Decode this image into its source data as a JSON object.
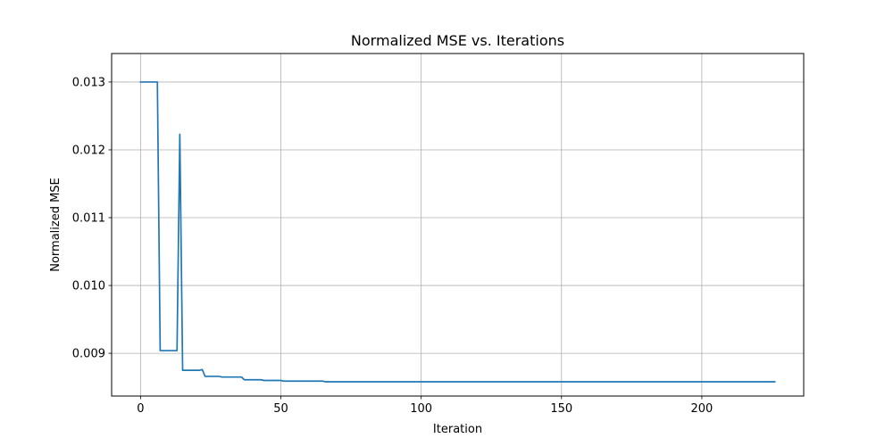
{
  "chart_data": {
    "type": "line",
    "title": "Normalized MSE vs. Iterations",
    "xlabel": "Iteration",
    "ylabel": "Normalized MSE",
    "xlim": [
      -10.3,
      236.3
    ],
    "ylim": [
      0.00837,
      0.01342
    ],
    "xticks": [
      0,
      50,
      100,
      150,
      200
    ],
    "xtick_labels": [
      "0",
      "50",
      "100",
      "150",
      "200"
    ],
    "yticks": [
      0.009,
      0.01,
      0.011,
      0.012,
      0.013
    ],
    "ytick_labels": [
      "0.009",
      "0.010",
      "0.011",
      "0.012",
      "0.013"
    ],
    "grid": true,
    "legend": "none",
    "series": [
      {
        "color": "#1f77b4",
        "x": [
          0,
          1,
          2,
          3,
          4,
          5,
          6,
          7,
          8,
          9,
          10,
          11,
          12,
          13,
          14,
          15,
          16,
          17,
          18,
          19,
          20,
          21,
          22,
          23,
          24,
          25,
          26,
          27,
          28,
          29,
          30,
          31,
          32,
          33,
          34,
          35,
          36,
          37,
          38,
          39,
          40,
          41,
          42,
          43,
          44,
          45,
          46,
          47,
          48,
          49,
          50,
          51,
          52,
          53,
          54,
          55,
          56,
          57,
          58,
          59,
          60,
          61,
          62,
          63,
          64,
          65,
          66,
          67,
          68,
          69,
          70,
          72,
          74,
          76,
          78,
          80,
          85,
          90,
          95,
          100,
          110,
          120,
          130,
          140,
          150,
          160,
          170,
          180,
          190,
          200,
          210,
          220,
          226
        ],
        "y": [
          0.013,
          0.013,
          0.013,
          0.013,
          0.013,
          0.013,
          0.013,
          0.00904,
          0.00904,
          0.00904,
          0.00904,
          0.00904,
          0.00904,
          0.00904,
          0.01223,
          0.00875,
          0.00875,
          0.00875,
          0.00875,
          0.00875,
          0.00875,
          0.00875,
          0.00876,
          0.00866,
          0.00866,
          0.00866,
          0.00866,
          0.00866,
          0.00866,
          0.00865,
          0.00865,
          0.00865,
          0.00865,
          0.00865,
          0.00865,
          0.00865,
          0.00865,
          0.00861,
          0.00861,
          0.00861,
          0.00861,
          0.00861,
          0.00861,
          0.00861,
          0.0086,
          0.0086,
          0.0086,
          0.0086,
          0.0086,
          0.0086,
          0.0086,
          0.00859,
          0.00859,
          0.00859,
          0.00859,
          0.00859,
          0.00859,
          0.00859,
          0.00859,
          0.00859,
          0.00859,
          0.00859,
          0.00859,
          0.00859,
          0.00859,
          0.00859,
          0.00858,
          0.00858,
          0.00858,
          0.00858,
          0.00858,
          0.00858,
          0.00858,
          0.00858,
          0.00858,
          0.00858,
          0.00858,
          0.00858,
          0.00858,
          0.00858,
          0.00858,
          0.00858,
          0.00858,
          0.00858,
          0.00858,
          0.00858,
          0.00858,
          0.00858,
          0.00858,
          0.00858,
          0.00858,
          0.00858,
          0.00858
        ]
      }
    ]
  }
}
